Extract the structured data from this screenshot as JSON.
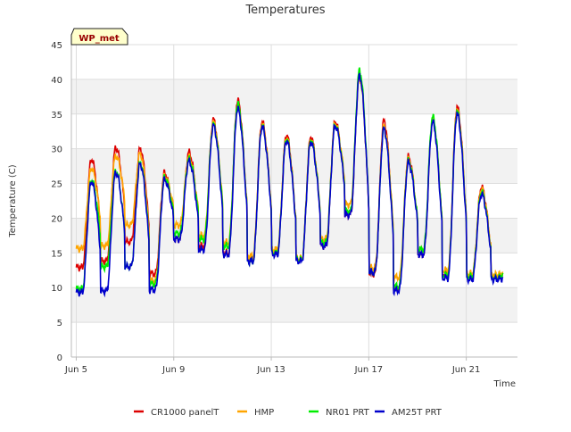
{
  "chart_data": {
    "type": "line",
    "title": "Temperatures",
    "badge": "WP_met",
    "xlabel": "Time",
    "ylabel": "Temperature (C)",
    "ylim": [
      0,
      45
    ],
    "xlim": [
      -0.2,
      18.1
    ],
    "yticks": [
      0,
      5,
      10,
      15,
      20,
      25,
      30,
      35,
      40,
      45
    ],
    "xticks": [
      {
        "label": "Jun 5",
        "value": 0
      },
      {
        "label": "Jun 9",
        "value": 4
      },
      {
        "label": "Jun 13",
        "value": 8
      },
      {
        "label": "Jun 17",
        "value": 12
      },
      {
        "label": "Jun 21",
        "value": 16
      }
    ],
    "grid": true,
    "legend_position": "bottom-center",
    "days": [
      0,
      1,
      2,
      3,
      4,
      5,
      6,
      7,
      8,
      9,
      10,
      11,
      12,
      13,
      14,
      15,
      16,
      17
    ],
    "series": [
      {
        "name": "CR1000 panelT",
        "color": "#dd0000",
        "maxima": [
          28.5,
          30.2,
          30.0,
          26.5,
          29.5,
          34.2,
          37.0,
          33.9,
          32.0,
          31.7,
          33.9,
          40.8,
          34.0,
          28.8,
          34.3,
          36.0,
          24.5,
          12.0
        ],
        "minima": [
          12.9,
          13.8,
          16.6,
          12.0,
          17.0,
          16.0,
          15.0,
          14.0,
          15.0,
          14.0,
          16.0,
          20.5,
          12.0,
          10.0,
          14.8,
          12.0,
          11.8,
          11.5
        ]
      },
      {
        "name": "HMP",
        "color": "#ffa500",
        "maxima": [
          27.2,
          29.0,
          29.3,
          26.0,
          28.8,
          33.8,
          36.2,
          33.5,
          31.6,
          31.3,
          33.6,
          40.2,
          33.2,
          28.4,
          34.0,
          35.5,
          24.2,
          12.2
        ],
        "minima": [
          15.6,
          16.0,
          19.0,
          11.0,
          19.0,
          17.5,
          16.5,
          14.5,
          15.5,
          14.2,
          17.0,
          22.0,
          12.8,
          11.5,
          15.5,
          12.5,
          12.0,
          11.8
        ]
      },
      {
        "name": "NR01 PRT",
        "color": "#00ee00",
        "maxima": [
          25.5,
          26.8,
          28.0,
          25.8,
          28.5,
          33.5,
          36.5,
          33.3,
          31.4,
          31.2,
          33.4,
          41.3,
          32.8,
          28.2,
          34.6,
          35.3,
          23.8,
          12.1
        ],
        "minima": [
          9.8,
          13.0,
          13.0,
          10.5,
          17.8,
          17.0,
          16.0,
          13.8,
          15.0,
          14.0,
          16.5,
          21.0,
          12.2,
          10.2,
          15.5,
          11.8,
          11.6,
          11.3
        ]
      },
      {
        "name": "AM25T PRT",
        "color": "#0000cc",
        "maxima": [
          25.3,
          26.6,
          27.8,
          25.5,
          28.2,
          33.3,
          35.8,
          33.2,
          31.2,
          31.0,
          33.3,
          40.5,
          32.8,
          28.0,
          33.8,
          35.0,
          23.5,
          11.4
        ],
        "minima": [
          9.3,
          9.5,
          13.0,
          9.7,
          17.0,
          15.5,
          14.8,
          13.8,
          14.8,
          13.8,
          16.0,
          20.5,
          12.2,
          9.6,
          14.8,
          11.4,
          11.2,
          11.2
        ]
      }
    ]
  }
}
